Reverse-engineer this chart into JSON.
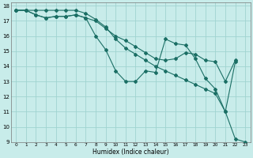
{
  "xlabel": "Humidex (Indice chaleur)",
  "bg_color": "#c8ecea",
  "grid_color": "#a0d4d0",
  "line_color": "#1a6e64",
  "xlim": [
    -0.5,
    23.5
  ],
  "ylim": [
    9,
    18.2
  ],
  "xticks": [
    0,
    1,
    2,
    3,
    4,
    5,
    6,
    7,
    8,
    9,
    10,
    11,
    12,
    13,
    14,
    15,
    16,
    17,
    18,
    19,
    20,
    21,
    22,
    23
  ],
  "yticks": [
    9,
    10,
    11,
    12,
    13,
    14,
    15,
    16,
    17,
    18
  ],
  "series": [
    {
      "x": [
        0,
        1,
        2,
        3,
        4,
        5,
        6,
        7,
        8,
        9,
        10,
        11,
        12,
        13,
        14,
        15,
        16,
        17,
        18,
        19,
        20,
        21,
        22
      ],
      "y": [
        17.7,
        17.7,
        17.4,
        17.2,
        17.3,
        17.3,
        17.4,
        17.2,
        16.0,
        15.1,
        13.7,
        13.0,
        13.0,
        13.7,
        13.6,
        15.8,
        15.5,
        15.4,
        14.5,
        13.2,
        12.5,
        11.0,
        14.3
      ],
      "has_markers": true
    },
    {
      "x": [
        0,
        1,
        2,
        3,
        4,
        5,
        6,
        7,
        8,
        9,
        10,
        11,
        12,
        13,
        14,
        15,
        16,
        17,
        18,
        19,
        20,
        21,
        22
      ],
      "y": [
        17.7,
        17.7,
        17.4,
        17.2,
        17.3,
        17.3,
        17.4,
        17.2,
        17.0,
        16.5,
        16.0,
        15.7,
        15.3,
        14.9,
        14.5,
        14.4,
        14.5,
        14.9,
        14.8,
        14.4,
        14.3,
        13.0,
        14.4
      ],
      "has_markers": true
    },
    {
      "x": [
        0,
        1,
        2,
        3,
        4,
        5,
        6,
        7,
        8,
        9,
        10,
        11,
        12,
        13,
        14,
        15,
        16,
        17,
        18,
        19,
        20,
        21,
        22,
        23
      ],
      "y": [
        17.7,
        17.7,
        17.7,
        17.7,
        17.7,
        17.7,
        17.7,
        17.5,
        17.1,
        16.6,
        15.8,
        15.2,
        14.8,
        14.4,
        14.0,
        13.7,
        13.4,
        13.1,
        12.8,
        12.5,
        12.2,
        11.0,
        9.2,
        9.0
      ],
      "has_markers": true
    }
  ]
}
